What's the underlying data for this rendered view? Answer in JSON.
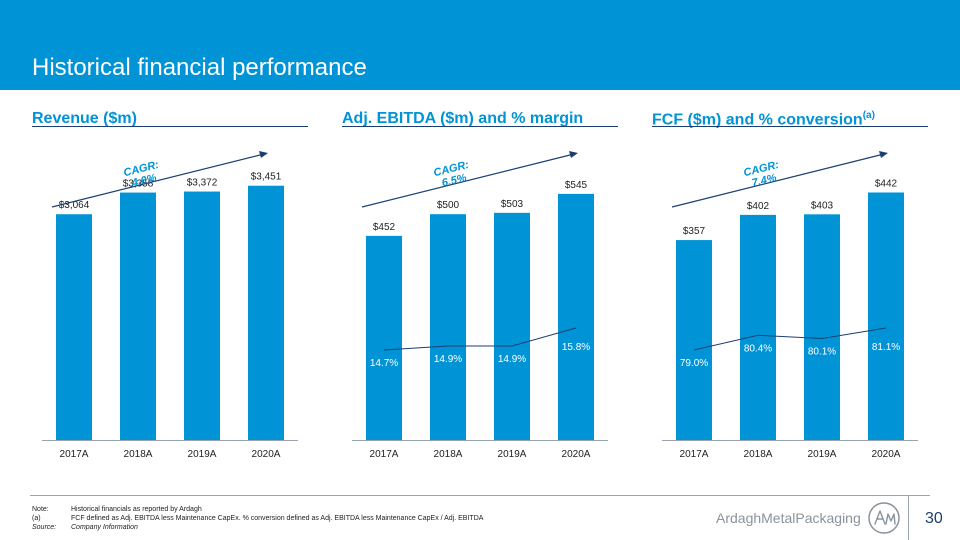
{
  "page": {
    "title": "Historical financial performance",
    "number": "30"
  },
  "brand": {
    "name": "ArdaghMetalPackaging",
    "logo_icon": "amp-logo-icon"
  },
  "colors": {
    "header": "#0094D6",
    "bar": "#0094D6",
    "line": "#1C3F73",
    "cagr_text": "#0094D6"
  },
  "footnotes": [
    {
      "label": "Note:",
      "text": "Historical financials as reported by Ardagh",
      "italic": false
    },
    {
      "label": "(a)",
      "text": "FCF defined as Adj. EBITDA less Maintenance CapEx. % conversion defined as Adj. EBITDA less Maintenance CapEx / Adj. EBITDA",
      "italic": false
    },
    {
      "label": "Source:",
      "text": "Company Information",
      "italic": true
    }
  ],
  "chart_data": [
    {
      "type": "bar",
      "title": "Revenue ($m)",
      "title_sup": "",
      "categories": [
        "2017A",
        "2018A",
        "2019A",
        "2020A"
      ],
      "values": [
        3064,
        3358,
        3372,
        3451
      ],
      "value_labels": [
        "$3,064",
        "$3,358",
        "$3,372",
        "$3,451"
      ],
      "cagr_label": "CAGR:",
      "cagr_value": "4.0%",
      "scale_max": 3800
    },
    {
      "type": "bar",
      "title": "Adj. EBITDA ($m) and % margin",
      "title_sup": "",
      "categories": [
        "2017A",
        "2018A",
        "2019A",
        "2020A"
      ],
      "values": [
        452,
        500,
        503,
        545
      ],
      "value_labels": [
        "$452",
        "$500",
        "$503",
        "$545"
      ],
      "line_values": [
        14.7,
        14.9,
        14.9,
        15.8
      ],
      "line_labels": [
        "14.7%",
        "14.9%",
        "14.9%",
        "15.8%"
      ],
      "cagr_label": "CAGR:",
      "cagr_value": "6.5%",
      "scale_max": 620
    },
    {
      "type": "bar",
      "title": "FCF ($m) and % conversion",
      "title_sup": "(a)",
      "categories": [
        "2017A",
        "2018A",
        "2019A",
        "2020A"
      ],
      "values": [
        357,
        402,
        403,
        442
      ],
      "value_labels": [
        "$357",
        "$402",
        "$403",
        "$442"
      ],
      "line_values": [
        79.0,
        80.4,
        80.1,
        81.1
      ],
      "line_labels": [
        "79.0%",
        "80.4%",
        "80.1%",
        "81.1%"
      ],
      "cagr_label": "CAGR:",
      "cagr_value": "7.4%",
      "scale_max": 500
    }
  ]
}
